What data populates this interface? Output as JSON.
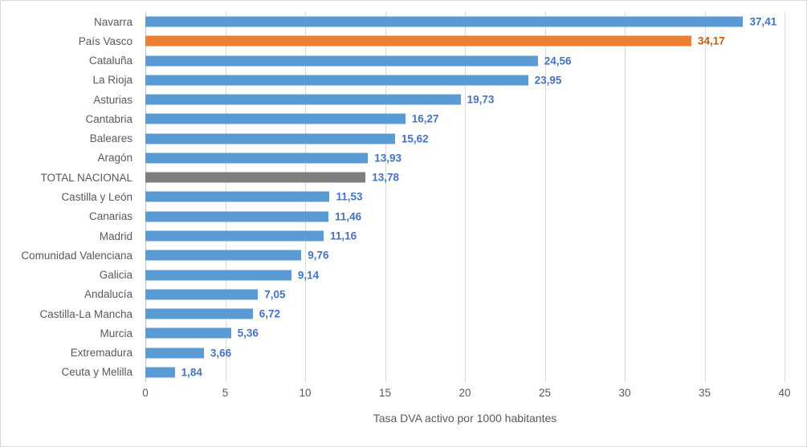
{
  "chart_data": {
    "type": "bar",
    "orientation": "horizontal",
    "title": "",
    "xlabel": "Tasa DVA activo por 1000 habitantes",
    "ylabel": "",
    "xlim": [
      0,
      40
    ],
    "xticks": [
      "0",
      "5",
      "10",
      "15",
      "20",
      "25",
      "30",
      "35",
      "40"
    ],
    "grid": "vertical-on",
    "legend": "none",
    "categories": [
      "Navarra",
      "País Vasco",
      "Cataluña",
      "La Rioja",
      "Asturias",
      "Cantabria",
      "Baleares",
      "Aragón",
      "TOTAL NACIONAL",
      "Castilla y León",
      "Canarias",
      "Madrid",
      "Comunidad Valenciana",
      "Galicia",
      "Andalucía",
      "Castilla-La Mancha",
      "Murcia",
      "Extremadura",
      "Ceuta y Melilla"
    ],
    "values": [
      37.41,
      34.17,
      24.56,
      23.95,
      19.73,
      16.27,
      15.62,
      13.93,
      13.78,
      11.53,
      11.46,
      11.16,
      9.76,
      9.14,
      7.05,
      6.72,
      5.36,
      3.66,
      1.84
    ],
    "value_labels": [
      "37,41",
      "34,17",
      "24,56",
      "23,95",
      "19,73",
      "16,27",
      "15,62",
      "13,93",
      "13,78",
      "11,53",
      "11,46",
      "11,16",
      "9,76",
      "9,14",
      "7,05",
      "6,72",
      "5,36",
      "3,66",
      "1,84"
    ],
    "bar_roles": [
      "default",
      "highlight",
      "default",
      "default",
      "default",
      "default",
      "default",
      "default",
      "total",
      "default",
      "default",
      "default",
      "default",
      "default",
      "default",
      "default",
      "default",
      "default",
      "default"
    ]
  },
  "colors": {
    "bar_default": "#5B9BD5",
    "bar_highlight": "#ED7D31",
    "bar_total": "#7F7F7F",
    "value_label_default": "#4472C4",
    "value_label_highlight": "#C55A11",
    "value_label_total": "#4472C4",
    "gridline": "#D9D9D9",
    "axis_line": "#BFBFBF",
    "axis_text": "#595959",
    "background": "#FFFFFF",
    "frame_border": "#D9D9D9"
  }
}
